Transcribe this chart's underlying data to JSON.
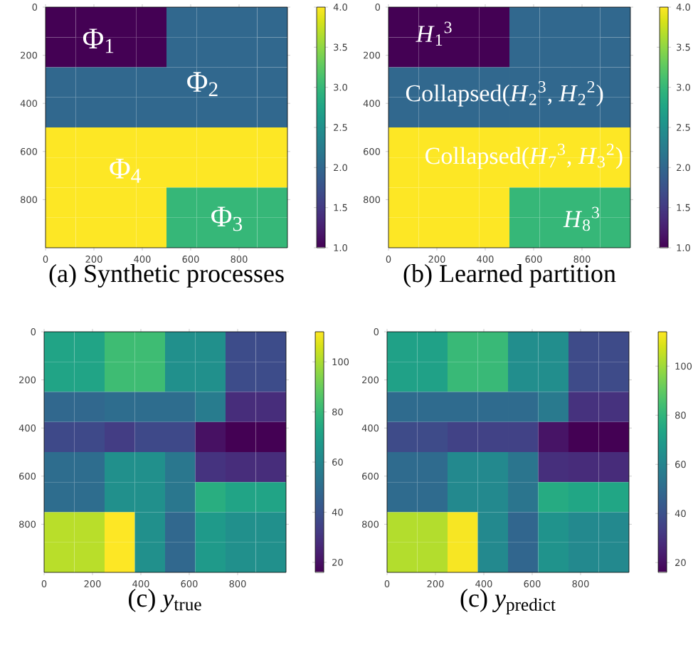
{
  "chart_data": [
    {
      "type": "heatmap",
      "title": "(a) Synthetic processes",
      "xlim": [
        0,
        1000
      ],
      "ylim": [
        1000,
        0
      ],
      "xticks": [
        0,
        200,
        400,
        600,
        800
      ],
      "yticks": [
        0,
        200,
        400,
        600,
        800
      ],
      "cells": [
        [
          1,
          1,
          1,
          1,
          2,
          2,
          2,
          2
        ],
        [
          1,
          1,
          1,
          1,
          2,
          2,
          2,
          2
        ],
        [
          2,
          2,
          2,
          2,
          2,
          2,
          2,
          2
        ],
        [
          2,
          2,
          2,
          2,
          2,
          2,
          2,
          2
        ],
        [
          4,
          4,
          4,
          4,
          4,
          4,
          4,
          4
        ],
        [
          4,
          4,
          4,
          4,
          4,
          4,
          4,
          4
        ],
        [
          4,
          4,
          4,
          4,
          3,
          3,
          3,
          3
        ],
        [
          4,
          4,
          4,
          4,
          3,
          3,
          3,
          3
        ]
      ],
      "clim": [
        1,
        4
      ],
      "cticks": [
        {
          "value": 1,
          "label": "1.0"
        },
        {
          "value": 1.5,
          "label": "1.5"
        },
        {
          "value": 2,
          "label": "2.0"
        },
        {
          "value": 2.5,
          "label": "2.5"
        },
        {
          "value": 3,
          "label": "3.0"
        },
        {
          "value": 3.5,
          "label": "3.5"
        },
        {
          "value": 4,
          "label": "4.0"
        }
      ],
      "annotations": [
        "Φ$_{1}$",
        "Φ$_{2}$",
        "Φ$_{4}$",
        "Φ$_{3}$"
      ]
    },
    {
      "type": "heatmap",
      "title": "(b) Learned partition",
      "xlim": [
        0,
        1000
      ],
      "ylim": [
        1000,
        0
      ],
      "xticks": [
        0,
        200,
        400,
        600,
        800
      ],
      "yticks": [
        0,
        200,
        400,
        600,
        800
      ],
      "cells": [
        [
          1,
          1,
          1,
          1,
          2,
          2,
          2,
          2
        ],
        [
          1,
          1,
          1,
          1,
          2,
          2,
          2,
          2
        ],
        [
          2,
          2,
          2,
          2,
          2,
          2,
          2,
          2
        ],
        [
          2,
          2,
          2,
          2,
          2,
          2,
          2,
          2
        ],
        [
          4,
          4,
          4,
          4,
          4,
          4,
          4,
          4
        ],
        [
          4,
          4,
          4,
          4,
          4,
          4,
          4,
          4
        ],
        [
          4,
          4,
          4,
          4,
          3,
          3,
          3,
          3
        ],
        [
          4,
          4,
          4,
          4,
          3,
          3,
          3,
          3
        ]
      ],
      "clim": [
        1,
        4
      ],
      "cticks": [
        {
          "value": 1,
          "label": "1.0"
        },
        {
          "value": 1.5,
          "label": "1.5"
        },
        {
          "value": 2,
          "label": "2.0"
        },
        {
          "value": 2.5,
          "label": "2.5"
        },
        {
          "value": 3,
          "label": "3.0"
        },
        {
          "value": 3.5,
          "label": "3.5"
        },
        {
          "value": 4,
          "label": "4.0"
        }
      ],
      "annotations": [
        "*H*$_{1}$$^{3}$",
        "Collapsed(*H*$_{2}$$^{3}$, *H*$_{2}$$^{2}$)",
        "Collapsed(*H*$_{7}$$^{3}$, *H*$_{3}$$^{2}$)",
        "*H*$_{8}$$^{3}$"
      ]
    },
    {
      "type": "heatmap",
      "title": "(c) *y*$_{true}$",
      "xlim": [
        0,
        1000
      ],
      "ylim": [
        1000,
        0
      ],
      "xticks": [
        0,
        200,
        400,
        600,
        800
      ],
      "yticks": [
        0,
        200,
        400,
        600,
        800
      ],
      "cells": [
        [
          72,
          72,
          82,
          82,
          64,
          64,
          38,
          38
        ],
        [
          72,
          72,
          82,
          82,
          64,
          64,
          38,
          38
        ],
        [
          48,
          48,
          50,
          50,
          50,
          56,
          28,
          28
        ],
        [
          37,
          37,
          33,
          37,
          37,
          20,
          16,
          16
        ],
        [
          50,
          50,
          64,
          64,
          54,
          30,
          28,
          28
        ],
        [
          50,
          50,
          64,
          64,
          54,
          76,
          72,
          72
        ],
        [
          102,
          102,
          112,
          64,
          48,
          68,
          64,
          64
        ],
        [
          102,
          102,
          112,
          64,
          48,
          68,
          64,
          64
        ]
      ],
      "clim": [
        16,
        112
      ],
      "cticks": [
        20,
        40,
        60,
        80,
        100
      ]
    },
    {
      "type": "heatmap",
      "title": "(c) *y*$_{predict}$",
      "xlim": [
        0,
        1000
      ],
      "ylim": [
        1000,
        0
      ],
      "xticks": [
        0,
        200,
        400,
        600,
        800
      ],
      "yticks": [
        0,
        200,
        400,
        600,
        800
      ],
      "cells": [
        [
          72,
          72,
          82,
          82,
          64,
          64,
          38,
          38
        ],
        [
          72,
          72,
          82,
          82,
          64,
          64,
          38,
          38
        ],
        [
          50,
          50,
          50,
          50,
          50,
          56,
          30,
          30
        ],
        [
          38,
          38,
          35,
          35,
          35,
          21,
          16,
          16
        ],
        [
          50,
          50,
          62,
          62,
          54,
          29,
          28,
          28
        ],
        [
          50,
          50,
          62,
          62,
          54,
          76,
          74,
          74
        ],
        [
          103,
          103,
          113,
          62,
          48,
          66,
          62,
          62
        ],
        [
          103,
          103,
          113,
          62,
          48,
          66,
          62,
          62
        ]
      ],
      "clim": [
        16,
        114
      ],
      "cticks": [
        20,
        40,
        60,
        80,
        100
      ]
    }
  ]
}
